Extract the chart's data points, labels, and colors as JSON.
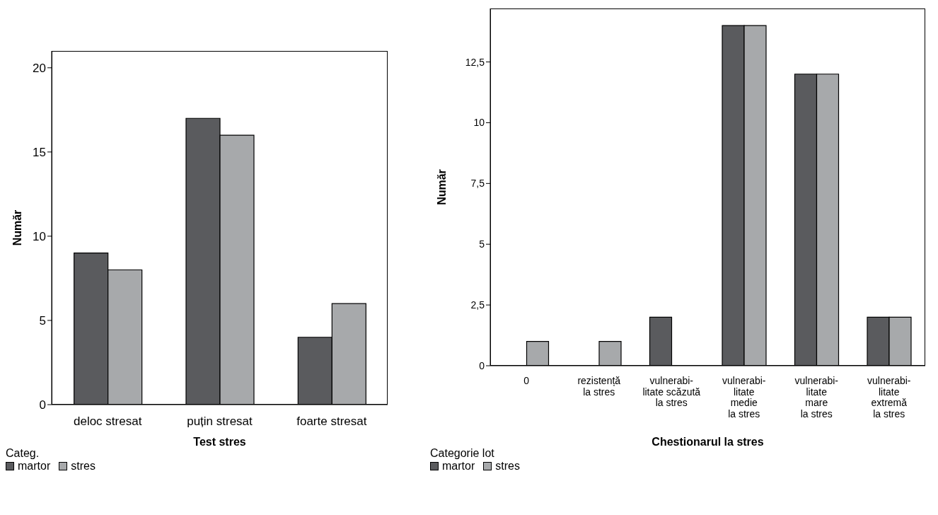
{
  "chart_data": [
    {
      "type": "bar",
      "xlabel": "Test stres",
      "ylabel": "Număr",
      "categories": [
        "deloc stresat",
        "puțin stresat",
        "foarte stresat"
      ],
      "series": [
        {
          "name": "martor",
          "color": "#5a5b5e",
          "values": [
            9,
            17,
            4
          ]
        },
        {
          "name": "stres",
          "color": "#a7a9ab",
          "values": [
            8,
            16,
            6
          ]
        }
      ],
      "ylim": [
        0,
        21
      ],
      "yticks": [
        0,
        5,
        10,
        15,
        20
      ],
      "legend": "bottom left",
      "legend_title": "Categ."
    },
    {
      "type": "bar",
      "xlabel": "Chestionarul la stres",
      "ylabel": "Număr",
      "categories": [
        "0",
        "rezistență\nla stres",
        "vulnerabi-\nlitate scăzută\nla stres",
        "vulnerabi-\nlitate\nmedie\nla stres",
        "vulnerabi-\nlitate\nmare\nla stres",
        "vulnerabi-\nlitate\nextremă\nla stres"
      ],
      "series": [
        {
          "name": "martor",
          "color": "#5a5b5e",
          "values": [
            0,
            0,
            2,
            14,
            12,
            2
          ]
        },
        {
          "name": "stres",
          "color": "#a7a9ab",
          "values": [
            1,
            1,
            0,
            14,
            12,
            2
          ]
        }
      ],
      "ylim": [
        0,
        14.7
      ],
      "yticks": [
        0,
        {
          "value": 2.5,
          "label": "2,5"
        },
        5,
        {
          "value": 7.5,
          "label": "7,5"
        },
        10,
        {
          "value": 12.5,
          "label": "12,5"
        }
      ],
      "legend": "bottom left",
      "legend_title": "Categorie lot"
    }
  ]
}
